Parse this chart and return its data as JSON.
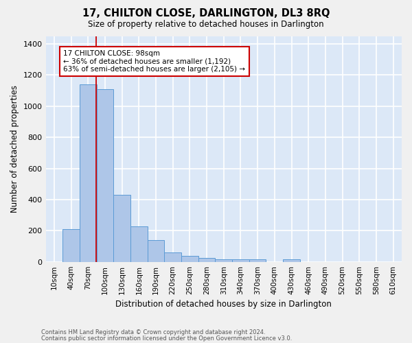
{
  "title": "17, CHILTON CLOSE, DARLINGTON, DL3 8RQ",
  "subtitle": "Size of property relative to detached houses in Darlington",
  "xlabel": "Distribution of detached houses by size in Darlington",
  "ylabel": "Number of detached properties",
  "footer_line1": "Contains HM Land Registry data © Crown copyright and database right 2024.",
  "footer_line2": "Contains public sector information licensed under the Open Government Licence v3.0.",
  "bar_labels": [
    "10sqm",
    "40sqm",
    "70sqm",
    "100sqm",
    "130sqm",
    "160sqm",
    "190sqm",
    "220sqm",
    "250sqm",
    "280sqm",
    "310sqm",
    "340sqm",
    "370sqm",
    "400sqm",
    "430sqm",
    "460sqm",
    "490sqm",
    "520sqm",
    "550sqm",
    "580sqm",
    "610sqm"
  ],
  "bar_values": [
    0,
    210,
    1140,
    1110,
    430,
    230,
    140,
    60,
    40,
    25,
    15,
    15,
    15,
    0,
    15,
    0,
    0,
    0,
    0,
    0,
    0
  ],
  "bar_color": "#aec6e8",
  "bar_edge_color": "#5b9bd5",
  "background_color": "#dce8f7",
  "grid_color": "#ffffff",
  "annotation_text": "17 CHILTON CLOSE: 98sqm\n← 36% of detached houses are smaller (1,192)\n63% of semi-detached houses are larger (2,105) →",
  "annotation_box_color": "#ffffff",
  "annotation_box_edge": "#cc0000",
  "ylim": [
    0,
    1450
  ],
  "yticks": [
    0,
    200,
    400,
    600,
    800,
    1000,
    1200,
    1400
  ],
  "fig_bg": "#f0f0f0"
}
